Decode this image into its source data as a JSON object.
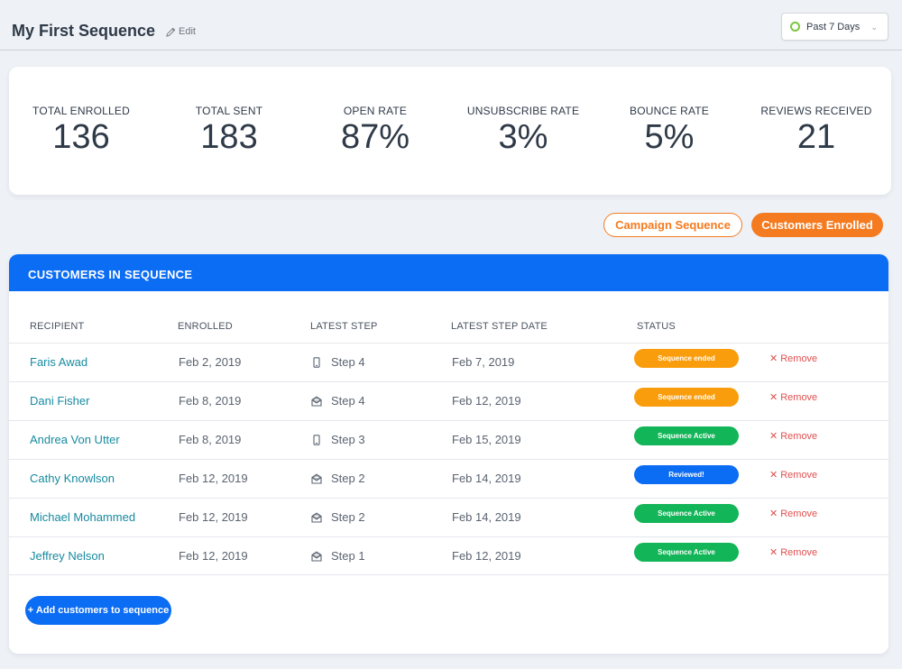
{
  "header": {
    "title": "My First Sequence",
    "edit_label": "Edit",
    "date_range": "Past 7 Days"
  },
  "stats": [
    {
      "label": "TOTAL ENROLLED",
      "value": "136"
    },
    {
      "label": "TOTAL SENT",
      "value": "183"
    },
    {
      "label": "OPEN RATE",
      "value": "87%"
    },
    {
      "label": "UNSUBSCRIBE RATE",
      "value": "3%"
    },
    {
      "label": "BOUNCE RATE",
      "value": "5%"
    },
    {
      "label": "REVIEWS RECEIVED",
      "value": "21"
    }
  ],
  "view_tabs": {
    "campaign_sequence": "Campaign Sequence",
    "customers_enrolled": "Customers Enrolled"
  },
  "table": {
    "title": "CUSTOMERS IN SEQUENCE",
    "columns": [
      "RECIPIENT",
      "ENROLLED",
      "LATEST STEP",
      "LATEST STEP DATE",
      "STATUS"
    ],
    "rows": [
      {
        "name": "Faris Awad",
        "enrolled": "Feb 2, 2019",
        "step_icon": "phone-icon",
        "step": "Step 4",
        "step_date": "Feb 7, 2019",
        "status": "Sequence ended",
        "status_color": "#fa9d0c",
        "remove": "Remove"
      },
      {
        "name": "Dani Fisher",
        "enrolled": "Feb 8, 2019",
        "step_icon": "email-icon",
        "step": "Step 4",
        "step_date": "Feb 12, 2019",
        "status": "Sequence ended",
        "status_color": "#fa9d0c",
        "remove": "Remove"
      },
      {
        "name": "Andrea Von Utter",
        "enrolled": "Feb 8, 2019",
        "step_icon": "phone-icon",
        "step": "Step 3",
        "step_date": "Feb 15, 2019",
        "status": "Sequence Active",
        "status_color": "#12b557",
        "remove": "Remove"
      },
      {
        "name": "Cathy Knowlson",
        "enrolled": "Feb 12, 2019",
        "step_icon": "email-icon",
        "step": "Step 2",
        "step_date": "Feb 14, 2019",
        "status": "Reviewed!",
        "status_color": "#0b6cf4",
        "remove": "Remove"
      },
      {
        "name": "Michael Mohammed",
        "enrolled": "Feb 12, 2019",
        "step_icon": "email-icon",
        "step": "Step 2",
        "step_date": "Feb 14, 2019",
        "status": "Sequence Active",
        "status_color": "#12b557",
        "remove": "Remove"
      },
      {
        "name": "Jeffrey Nelson",
        "enrolled": "Feb 12, 2019",
        "step_icon": "email-icon",
        "step": "Step 1",
        "step_date": "Feb 12, 2019",
        "status": "Sequence Active",
        "status_color": "#12b557",
        "remove": "Remove"
      }
    ],
    "add_button": "+ Add customers to sequence"
  },
  "colors": {
    "accent_blue": "#0b6cf4",
    "accent_orange": "#f47b20",
    "link_teal": "#178aa0",
    "remove_red": "#e05050"
  }
}
